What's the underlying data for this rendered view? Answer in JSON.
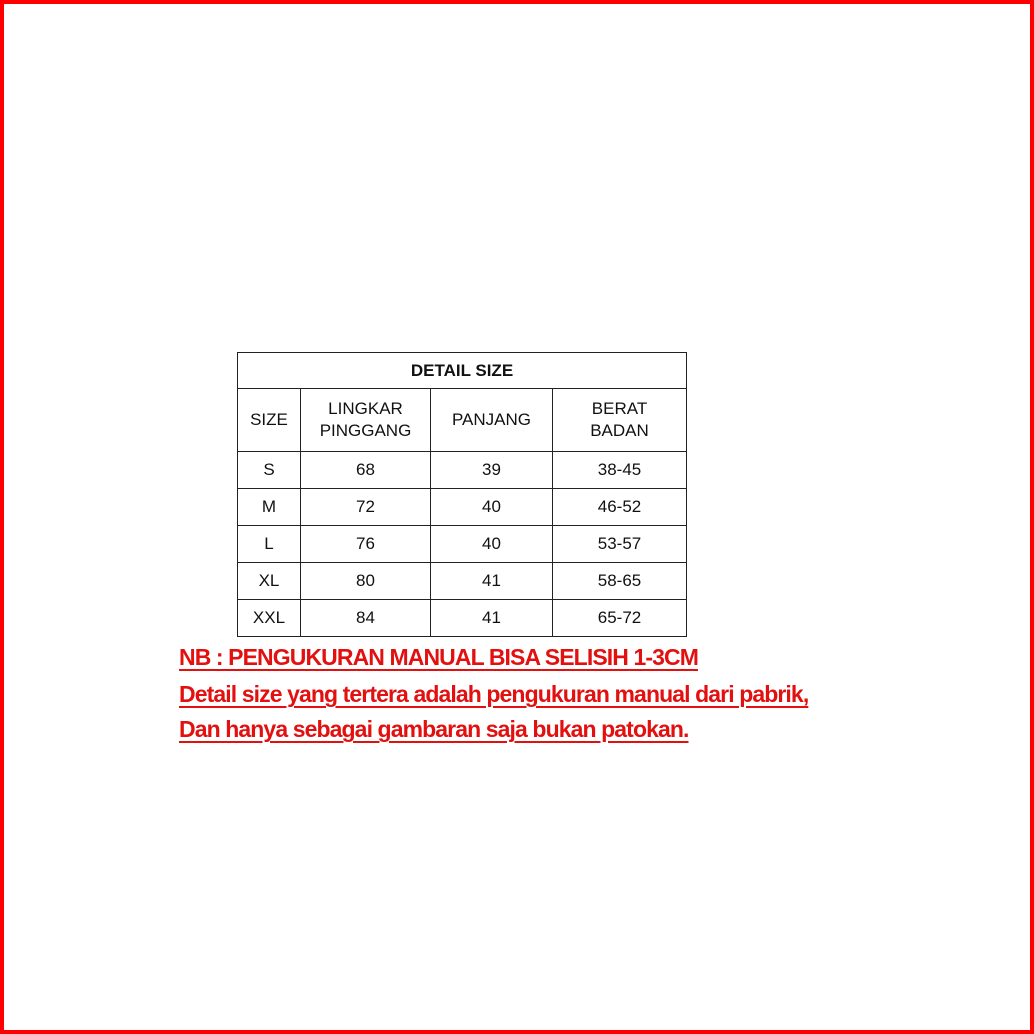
{
  "frame_color": "#ff0000",
  "note_color": "#e31010",
  "table": {
    "title": "DETAIL SIZE",
    "headers": [
      "SIZE",
      "LINGKAR PINGGANG",
      "PANJANG",
      "BERAT BADAN"
    ],
    "header_lines": [
      [
        "SIZE"
      ],
      [
        "LINGKAR",
        "PINGGANG"
      ],
      [
        "PANJANG"
      ],
      [
        "BERAT",
        "BADAN"
      ]
    ],
    "rows": [
      [
        "S",
        "68",
        "39",
        "38-45"
      ],
      [
        "M",
        "72",
        "40",
        "46-52"
      ],
      [
        "L",
        "76",
        "40",
        "53-57"
      ],
      [
        "XL",
        "80",
        "41",
        "58-65"
      ],
      [
        "XXL",
        "84",
        "41",
        "65-72"
      ]
    ]
  },
  "notes": [
    "NB : PENGUKURAN MANUAL BISA SELISIH 1-3CM",
    "Detail size yang tertera adalah pengukuran manual dari pabrik,",
    "Dan hanya sebagai gambaran saja bukan patokan."
  ]
}
